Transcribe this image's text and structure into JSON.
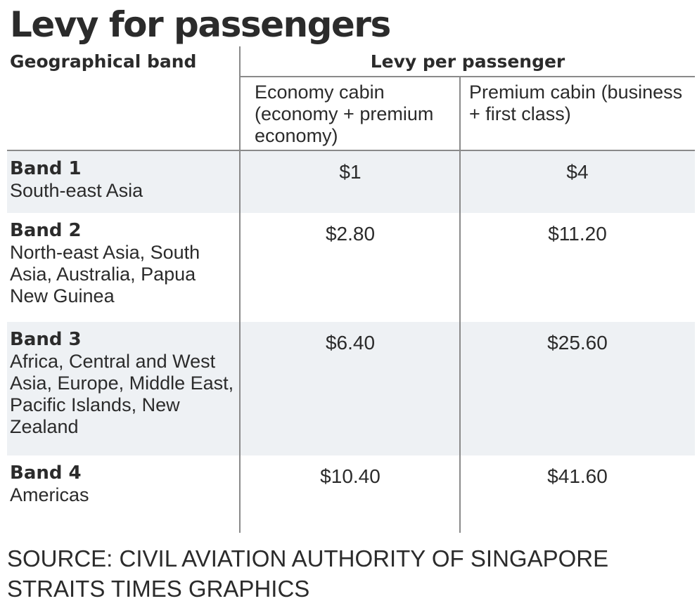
{
  "chart_data": {
    "type": "table",
    "title": "Levy for passengers",
    "header": {
      "geo": "Geographical band",
      "levy": "Levy per passenger",
      "economy": "Economy cabin (economy + premium economy)",
      "premium": "Premium cabin (business + first class)"
    },
    "rows": [
      {
        "band": "Band 1",
        "regions": "South-east Asia",
        "economy": "$1",
        "premium": "$4"
      },
      {
        "band": "Band 2",
        "regions": "North-east Asia, South Asia, Australia, Papua New Guinea",
        "economy": "$2.80",
        "premium": "$11.20"
      },
      {
        "band": "Band 3",
        "regions": "Africa, Central and West Asia, Europe, Middle East, Pacific Islands, New Zealand",
        "economy": "$6.40",
        "premium": "$25.60"
      },
      {
        "band": "Band 4",
        "regions": "Americas",
        "economy": "$10.40",
        "premium": "$41.60"
      }
    ]
  },
  "footer": {
    "source": "SOURCE: CIVIL AVIATION AUTHORITY OF SINGAPORE",
    "credit": "STRAITS TIMES GRAPHICS"
  }
}
